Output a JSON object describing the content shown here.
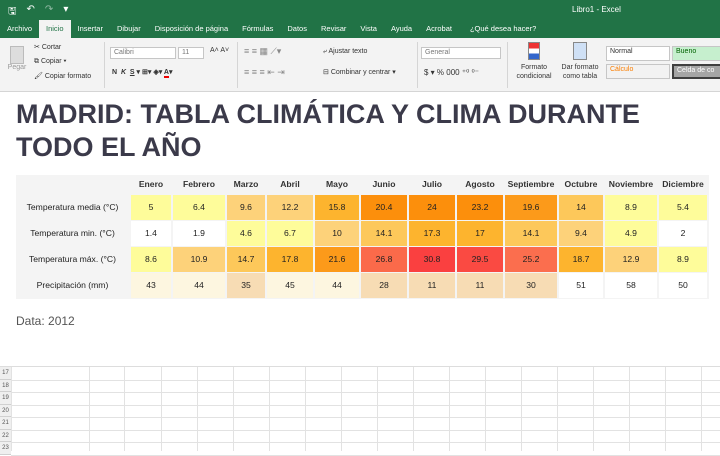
{
  "window": {
    "title": "Libro1 - Excel"
  },
  "menu_tabs": [
    "Archivo",
    "Inicio",
    "Insertar",
    "Dibujar",
    "Disposición de página",
    "Fórmulas",
    "Datos",
    "Revisar",
    "Vista",
    "Ayuda",
    "Acrobat",
    "¿Qué desea hacer?"
  ],
  "ribbon": {
    "paste": "Pegar",
    "cut": "Cortar",
    "copy": "Copiar",
    "format_painter": "Copiar formato",
    "font": "Calibri",
    "font_size": "11",
    "bold": "N",
    "italic": "K",
    "underline": "S",
    "wrap_text": "Ajustar texto",
    "merge": "Combinar y centrar",
    "number_format": "General",
    "currency": "$",
    "percent": "%",
    "thousands": "000",
    "cond_format": "Formato condicional",
    "format_table": "Dar formato como tabla",
    "styles": {
      "normal": "Normal",
      "good": "Bueno",
      "calc": "Cálculo",
      "check": "Celda de co"
    }
  },
  "sheet": {
    "title": "MADRID: TABLA CLIMÁTICA Y CLIMA DURANTE TODO EL AÑO",
    "months": [
      "Enero",
      "Febrero",
      "Marzo",
      "Abril",
      "Mayo",
      "Junio",
      "Julio",
      "Agosto",
      "Septiembre",
      "Octubre",
      "Noviembre",
      "Diciembre"
    ],
    "rows": [
      {
        "label": "Temperatura media (°C)",
        "values": [
          "5",
          "6.4",
          "9.6",
          "12.2",
          "15.8",
          "20.4",
          "24",
          "23.2",
          "19.6",
          "14",
          "8.9",
          "5.4"
        ],
        "colors": [
          "#fefc9a",
          "#fefc9a",
          "#fdd27a",
          "#fdd27a",
          "#fdb42e",
          "#fc8f0c",
          "#fc8f0c",
          "#fc8f0c",
          "#fc9a1a",
          "#fdc85a",
          "#fefc9a",
          "#fefc9a"
        ]
      },
      {
        "label": "Temperatura min. (°C)",
        "values": [
          "1.4",
          "1.9",
          "4.6",
          "6.7",
          "10",
          "14.1",
          "17.3",
          "17",
          "14.1",
          "9.4",
          "4.9",
          "2"
        ],
        "colors": [
          "#ffffff",
          "#ffffff",
          "#fefc9a",
          "#fefc9a",
          "#fdd27a",
          "#fdc85a",
          "#fdb42e",
          "#fdb42e",
          "#fdc85a",
          "#fdd27a",
          "#fefc9a",
          "#ffffff"
        ]
      },
      {
        "label": "Temperatura máx. (°C)",
        "values": [
          "8.6",
          "10.9",
          "14.7",
          "17.8",
          "21.6",
          "26.8",
          "30.8",
          "29.5",
          "25.2",
          "18.7",
          "12.9",
          "8.9"
        ],
        "colors": [
          "#fefc9a",
          "#fdd27a",
          "#fdc85a",
          "#fdb42e",
          "#fc9a1a",
          "#fb6a4a",
          "#fa4040",
          "#fa4a42",
          "#fb6e4e",
          "#fdb42e",
          "#fdd27a",
          "#fefc9a"
        ]
      },
      {
        "label": "Precipitación (mm)",
        "values": [
          "43",
          "44",
          "35",
          "45",
          "44",
          "28",
          "11",
          "11",
          "30",
          "51",
          "58",
          "50"
        ],
        "colors": [
          "#fdf6e0",
          "#fdf6e0",
          "#f7dcb4",
          "#fdf6e0",
          "#fdf6e0",
          "#f7dcb4",
          "#f7dcb4",
          "#f7dcb4",
          "#f7dcb4",
          "#ffffff",
          "#ffffff",
          "#ffffff"
        ]
      }
    ],
    "note": "Data: 2012",
    "row_numbers": [
      "17",
      "18",
      "19",
      "20",
      "21",
      "22",
      "23"
    ]
  }
}
